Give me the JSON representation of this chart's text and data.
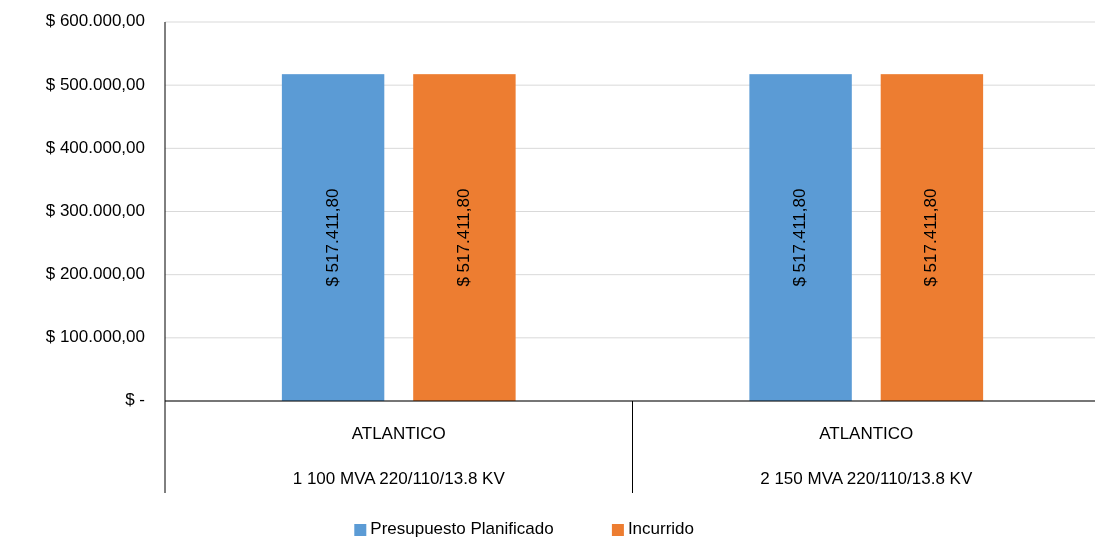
{
  "chart_data": {
    "type": "bar",
    "categories": [
      "ATLANTICO\n1 100 MVA 220/110/13.8 KV",
      "ATLANTICO\n2 150 MVA 220/110/13.8 KV"
    ],
    "series": [
      {
        "name": "Presupuesto Planificado",
        "color": "#5b9bd5",
        "values": [
          517411.8,
          517411.8
        ],
        "value_labels": [
          "$ 517.411,80",
          "$ 517.411,80"
        ]
      },
      {
        "name": "Incurrido",
        "color": "#ed7d31",
        "values": [
          517411.8,
          517411.8
        ],
        "value_labels": [
          "$ 517.411,80",
          "$ 517.411,80"
        ]
      }
    ],
    "ylim": [
      0,
      600000
    ],
    "yticks": [
      {
        "value": 0,
        "label": "$ -"
      },
      {
        "value": 100000,
        "label": "$ 100.000,00"
      },
      {
        "value": 200000,
        "label": "$ 200.000,00"
      },
      {
        "value": 300000,
        "label": "$ 300.000,00"
      },
      {
        "value": 400000,
        "label": "$ 400.000,00"
      },
      {
        "value": 500000,
        "label": "$ 500.000,00"
      },
      {
        "value": 600000,
        "label": "$ 600.000,00"
      }
    ],
    "grid": "y",
    "legend": "bottom"
  }
}
